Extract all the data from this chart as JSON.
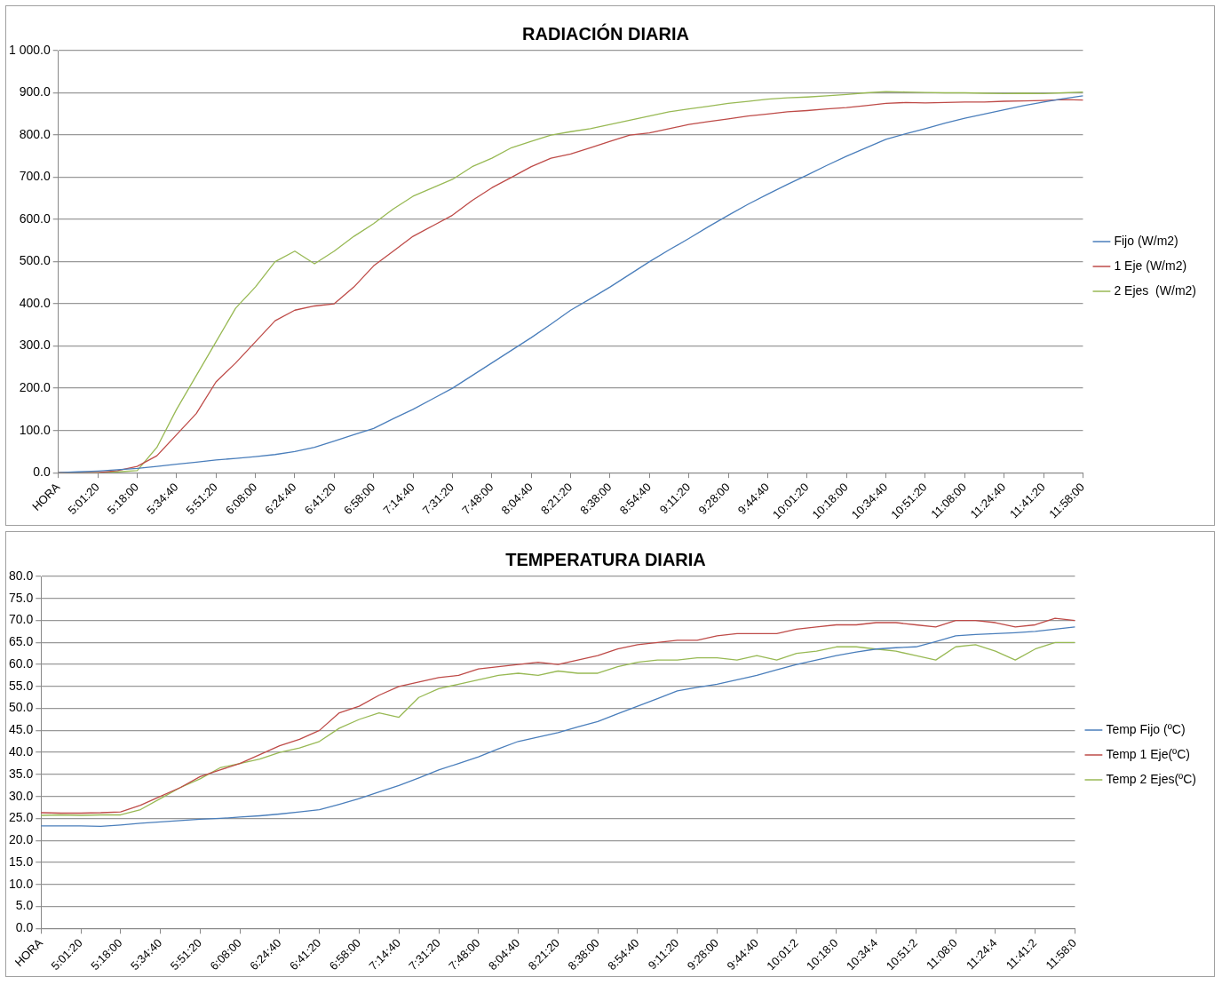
{
  "chart_data": [
    {
      "type": "line",
      "title": "RADIACIÓN DIARIA",
      "categories": [
        "HORA",
        null,
        "5:01:20",
        null,
        "5:18:00",
        null,
        "5:34:40",
        null,
        "5:51:20",
        null,
        "6:08:00",
        null,
        "6:24:40",
        null,
        "6:41:20",
        null,
        "6:58:00",
        null,
        "7:14:40",
        null,
        "7:31:20",
        null,
        "7:48:00",
        null,
        "8:04:40",
        null,
        "8:21:20",
        null,
        "8:38:00",
        null,
        "8:54:40",
        null,
        "9:11:20",
        null,
        "9:28:00",
        null,
        "9:44:40",
        null,
        "10:01:20",
        null,
        "10:18:00",
        null,
        "10:34:40",
        null,
        "10:51:20",
        null,
        "11:08:00",
        null,
        "11:24:40",
        null,
        "11:41:20",
        null,
        "11:58:00"
      ],
      "series": [
        {
          "name": "Fijo (W/m2)",
          "color": "#4a7ebb",
          "values": [
            0,
            2,
            4,
            7,
            10,
            15,
            20,
            25,
            30,
            34,
            38,
            43,
            50,
            60,
            75,
            90,
            105,
            128,
            150,
            175,
            200,
            230,
            260,
            290,
            320,
            352,
            385,
            412,
            440,
            470,
            500,
            528,
            555,
            583,
            610,
            636,
            660,
            683,
            705,
            728,
            750,
            770,
            790,
            803,
            815,
            828,
            840,
            850,
            860,
            870,
            878,
            886,
            893
          ]
        },
        {
          "name": "1 Eje (W/m2)",
          "color": "#be4b48",
          "values": [
            0,
            0,
            0,
            5,
            15,
            40,
            90,
            140,
            215,
            260,
            310,
            360,
            385,
            395,
            400,
            440,
            490,
            525,
            560,
            585,
            610,
            645,
            675,
            700,
            725,
            745,
            755,
            770,
            785,
            800,
            805,
            815,
            825,
            832,
            838,
            845,
            850,
            855,
            858,
            862,
            865,
            870,
            875,
            877,
            876,
            877,
            878,
            878,
            880,
            881,
            882,
            884,
            883
          ]
        },
        {
          "name": "2 Ejes  (W/m2)",
          "color": "#98b954",
          "values": [
            0,
            0,
            0,
            2,
            5,
            60,
            150,
            230,
            310,
            390,
            440,
            500,
            525,
            495,
            525,
            560,
            590,
            625,
            655,
            675,
            695,
            725,
            745,
            770,
            785,
            800,
            808,
            815,
            825,
            835,
            845,
            855,
            862,
            868,
            875,
            880,
            885,
            888,
            890,
            893,
            896,
            900,
            903,
            902,
            901,
            900,
            900,
            899,
            898,
            899,
            898,
            900,
            902
          ]
        }
      ],
      "ylim": [
        0,
        1000
      ],
      "yticks": [
        {
          "value": 0,
          "label": "0.0"
        },
        {
          "value": 100,
          "label": "100.0"
        },
        {
          "value": 200,
          "label": "200.0"
        },
        {
          "value": 300,
          "label": "300.0"
        },
        {
          "value": 400,
          "label": "400.0"
        },
        {
          "value": 500,
          "label": "500.0"
        },
        {
          "value": 600,
          "label": "600.0"
        },
        {
          "value": 700,
          "label": "700.0"
        },
        {
          "value": 800,
          "label": "800.0"
        },
        {
          "value": 900,
          "label": "900.0"
        },
        {
          "value": 1000,
          "label": "1 000.0"
        }
      ],
      "grid": "y",
      "legend": "right",
      "marker": "none"
    },
    {
      "type": "line",
      "title": "TEMPERATURA DIARIA",
      "categories": [
        "HORA",
        null,
        "5:01:20",
        null,
        "5:18:00",
        null,
        "5:34:40",
        null,
        "5:51:20",
        null,
        "6:08:00",
        null,
        "6:24:40",
        null,
        "6:41:20",
        null,
        "6:58:00",
        null,
        "7:14:40",
        null,
        "7:31:20",
        null,
        "7:48:00",
        null,
        "8:04:40",
        null,
        "8:21:20",
        null,
        "8:38:00",
        null,
        "8:54:40",
        null,
        "9:11:20",
        null,
        "9:28:00",
        null,
        "9:44:40",
        null,
        "10:01:2",
        null,
        "10:18:0",
        null,
        "10:34:4",
        null,
        "10:51:2",
        null,
        "11:08:0",
        null,
        "11:24:4",
        null,
        "11:41:2",
        null,
        "11:58:0"
      ],
      "series": [
        {
          "name": "Temp Fijo (ºC)",
          "color": "#4a7ebb",
          "values": [
            23.3,
            23.3,
            23.3,
            23.2,
            23.5,
            23.9,
            24.2,
            24.5,
            24.8,
            25,
            25.3,
            25.6,
            26,
            26.5,
            27,
            28.2,
            29.5,
            31,
            32.5,
            34.2,
            36,
            37.5,
            39,
            40.8,
            42.5,
            43.5,
            44.5,
            45.8,
            47,
            48.8,
            50.5,
            52.2,
            54,
            54.8,
            55.5,
            56.5,
            57.5,
            58.8,
            60,
            61,
            62,
            62.8,
            63.5,
            63.8,
            64,
            65.2,
            66.5,
            66.8,
            67,
            67.2,
            67.5,
            68,
            68.5
          ]
        },
        {
          "name": "Temp 1 Eje(ºC)",
          "color": "#be4b48",
          "values": [
            26.3,
            26.2,
            26.2,
            26.3,
            26.5,
            28,
            30,
            32,
            34.5,
            36,
            37.5,
            39.5,
            41.5,
            43,
            45,
            49,
            50.5,
            53,
            55,
            56,
            57,
            57.5,
            59,
            59.5,
            60,
            60.5,
            60,
            61,
            62,
            63.5,
            64.5,
            65,
            65.5,
            65.5,
            66.5,
            67,
            67,
            67,
            68,
            68.5,
            69,
            69,
            69.5,
            69.5,
            69,
            68.5,
            70,
            70,
            69.5,
            68.5,
            69,
            70.5,
            70
          ]
        },
        {
          "name": "Temp 2 Ejes(ºC)",
          "color": "#98b954",
          "values": [
            25.7,
            25.8,
            25.7,
            25.8,
            25.8,
            27,
            29.5,
            32,
            34,
            36.5,
            37.5,
            38.5,
            40,
            41,
            42.5,
            45.5,
            47.5,
            49,
            48,
            52.5,
            54.5,
            55.5,
            56.5,
            57.5,
            58,
            57.5,
            58.5,
            58,
            58,
            59.5,
            60.5,
            61,
            61,
            61.5,
            61.5,
            61,
            62,
            61,
            62.5,
            63,
            64,
            64,
            63.5,
            63,
            62,
            61,
            64,
            64.5,
            63,
            61,
            63.5,
            65,
            65
          ]
        }
      ],
      "ylim": [
        0,
        80
      ],
      "yticks": [
        {
          "value": 0,
          "label": "0.0"
        },
        {
          "value": 5,
          "label": "5.0"
        },
        {
          "value": 10,
          "label": "10.0"
        },
        {
          "value": 15,
          "label": "15.0"
        },
        {
          "value": 20,
          "label": "20.0"
        },
        {
          "value": 25,
          "label": "25.0"
        },
        {
          "value": 30,
          "label": "30.0"
        },
        {
          "value": 35,
          "label": "35.0"
        },
        {
          "value": 40,
          "label": "40.0"
        },
        {
          "value": 45,
          "label": "45.0"
        },
        {
          "value": 50,
          "label": "50.0"
        },
        {
          "value": 55,
          "label": "55.0"
        },
        {
          "value": 60,
          "label": "60.0"
        },
        {
          "value": 65,
          "label": "65.0"
        },
        {
          "value": 70,
          "label": "70.0"
        },
        {
          "value": 75,
          "label": "75.0"
        },
        {
          "value": 80,
          "label": "80.0"
        }
      ],
      "grid": "y",
      "legend": "right",
      "marker": "none"
    }
  ]
}
